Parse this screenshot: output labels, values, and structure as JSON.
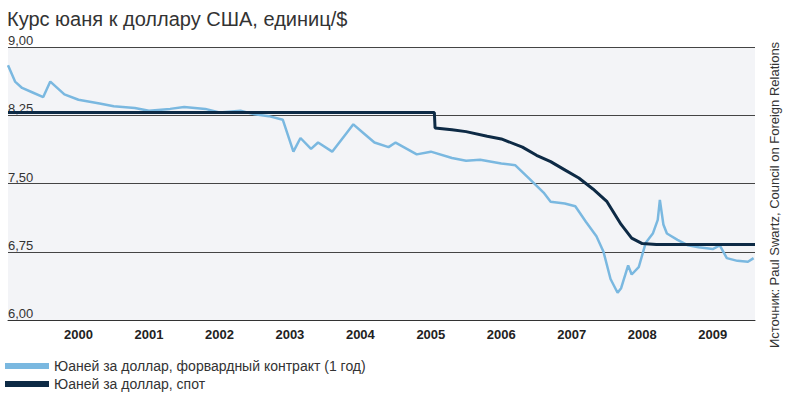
{
  "chart_data": {
    "type": "line",
    "title": "Курс юаня к доллару США, единиц/$",
    "annotations": [
      "Источник: Paul Swartz, Council on Foreign Relations"
    ],
    "xlim": [
      1999.5,
      2010.1
    ],
    "xticks": [
      {
        "value": 2000.5,
        "label": "2000"
      },
      {
        "value": 2001.5,
        "label": "2001"
      },
      {
        "value": 2002.5,
        "label": "2002"
      },
      {
        "value": 2003.5,
        "label": "2003"
      },
      {
        "value": 2004.5,
        "label": "2004"
      },
      {
        "value": 2005.5,
        "label": "2005"
      },
      {
        "value": 2006.5,
        "label": "2006"
      },
      {
        "value": 2007.5,
        "label": "2007"
      },
      {
        "value": 2008.5,
        "label": "2008"
      },
      {
        "value": 2009.5,
        "label": "2009"
      }
    ],
    "ylim": [
      6,
      9
    ],
    "yticks": [
      {
        "value": 6,
        "label": "6,00"
      },
      {
        "value": 6.75,
        "label": "6,75"
      },
      {
        "value": 7.5,
        "label": "7,50"
      },
      {
        "value": 8.25,
        "label": "8,25"
      },
      {
        "value": 9,
        "label": "9,00"
      }
    ],
    "grid": true,
    "legend": "bottom-left",
    "series": [
      {
        "name": "Юаней за доллар, форвардный контракт (1 год)",
        "color": "#7ab8e0",
        "x": [
          1999.5,
          1999.6,
          1999.7,
          1999.85,
          2000.0,
          2000.1,
          2000.3,
          2000.5,
          2000.8,
          2001.0,
          2001.3,
          2001.5,
          2001.8,
          2002.0,
          2002.3,
          2002.5,
          2002.8,
          2003.0,
          2003.2,
          2003.4,
          2003.55,
          2003.65,
          2003.8,
          2003.9,
          2004.1,
          2004.3,
          2004.4,
          2004.55,
          2004.7,
          2004.9,
          2005.0,
          2005.3,
          2005.5,
          2005.8,
          2006.0,
          2006.2,
          2006.5,
          2006.7,
          2006.9,
          2007.1,
          2007.2,
          2007.4,
          2007.55,
          2007.7,
          2007.85,
          2007.95,
          2008.05,
          2008.15,
          2008.2,
          2008.3,
          2008.35,
          2008.45,
          2008.55,
          2008.65,
          2008.72,
          2008.75,
          2008.8,
          2008.85,
          2009.0,
          2009.15,
          2009.3,
          2009.5,
          2009.6,
          2009.7,
          2009.85,
          2010.0,
          2010.08
        ],
        "values": [
          8.8,
          8.62,
          8.55,
          8.5,
          8.45,
          8.62,
          8.48,
          8.42,
          8.38,
          8.35,
          8.33,
          8.3,
          8.32,
          8.34,
          8.32,
          8.28,
          8.3,
          8.26,
          8.24,
          8.2,
          7.85,
          8.0,
          7.88,
          7.95,
          7.85,
          8.05,
          8.15,
          8.05,
          7.95,
          7.9,
          7.95,
          7.82,
          7.85,
          7.78,
          7.75,
          7.76,
          7.72,
          7.7,
          7.55,
          7.4,
          7.3,
          7.28,
          7.25,
          7.08,
          6.92,
          6.75,
          6.45,
          6.3,
          6.35,
          6.6,
          6.5,
          6.58,
          6.85,
          6.95,
          7.1,
          7.32,
          7.05,
          6.95,
          6.88,
          6.82,
          6.8,
          6.78,
          6.82,
          6.68,
          6.65,
          6.64,
          6.68
        ]
      },
      {
        "name": "Юаней за доллар, спот",
        "color": "#0d2a45",
        "x": [
          1999.5,
          2005.55,
          2005.56,
          2005.8,
          2006.0,
          2006.3,
          2006.5,
          2006.8,
          2007.0,
          2007.2,
          2007.4,
          2007.6,
          2007.8,
          2008.0,
          2008.2,
          2008.35,
          2008.5,
          2008.7,
          2009.0,
          2009.5,
          2010.1
        ],
        "values": [
          8.28,
          8.28,
          8.11,
          8.09,
          8.07,
          8.02,
          7.99,
          7.9,
          7.81,
          7.74,
          7.65,
          7.56,
          7.44,
          7.3,
          7.05,
          6.9,
          6.84,
          6.83,
          6.83,
          6.83,
          6.83
        ]
      }
    ]
  }
}
